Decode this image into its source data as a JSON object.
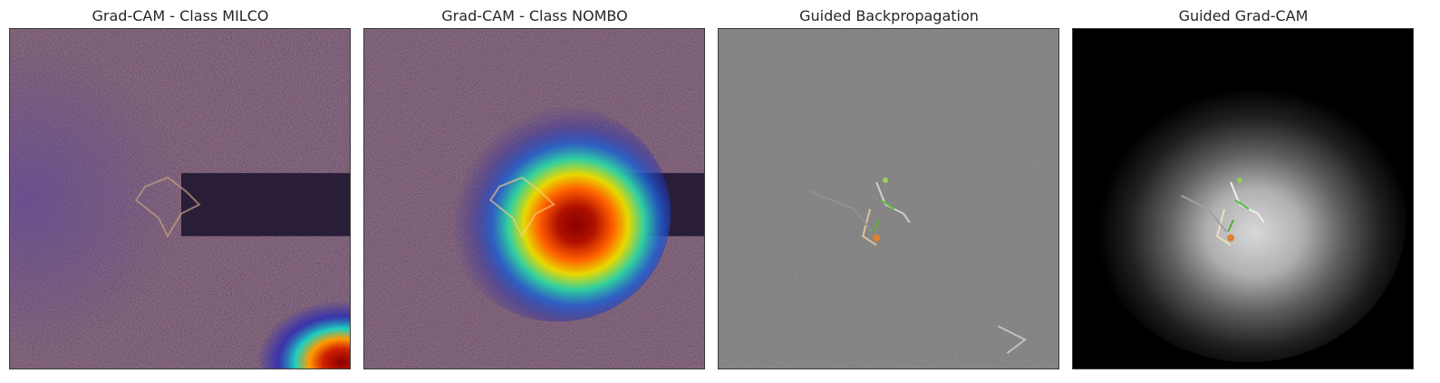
{
  "panels": [
    {
      "title": "Grad-CAM - Class MILCO"
    },
    {
      "title": "Grad-CAM - Class NOMBO"
    },
    {
      "title": "Guided Backpropagation"
    },
    {
      "title": "Guided Grad-CAM"
    }
  ],
  "colors": {
    "sonar_base": "#2a1a3a",
    "sonar_speckle": "#6a4a50",
    "heat_core": "#8a0000",
    "heat_mid": "#ff9a00",
    "heat_outer": "#1ed0c0",
    "heat_edge": "#2020c0",
    "gb_gray": "#808080",
    "black": "#000000"
  }
}
